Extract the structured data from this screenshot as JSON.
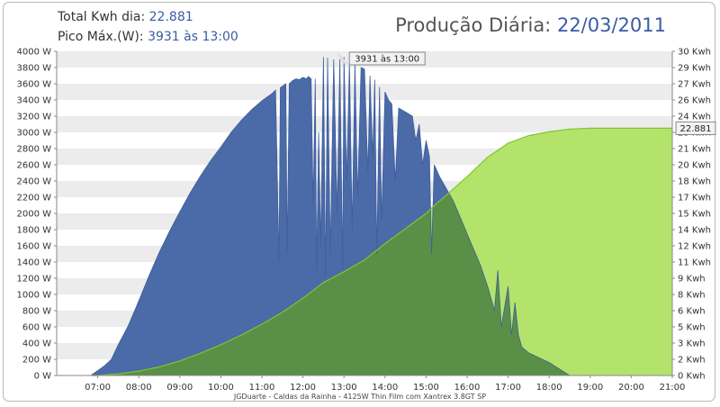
{
  "header": {
    "total_label": "Total Kwh dia:",
    "total_value": "22.881",
    "peak_label": "Pico Máx.(W):",
    "peak_value": "3931 às 13:00",
    "title_label": "Produção Diária:",
    "title_date": "22/03/2011"
  },
  "footer": "JGDuarte  -  Caldas da Rainha  -  4125W Thin Film com Xantrex 3.8GT SP",
  "colors": {
    "power_fill": "#4a6aa8",
    "power_stroke": "#3f5e9e",
    "energy_fill": "#b4e36c",
    "energy_stroke": "#7fc72e",
    "overlap_fill": "#5a8f47",
    "stripe": "#ececec"
  },
  "chart_data": {
    "type": "area",
    "title": "Produção Diária: 22/03/2011",
    "xlabel": "",
    "ylabel_left": "",
    "ylabel_right": "",
    "x_ticks": [
      "07:00",
      "08:00",
      "09:00",
      "10:00",
      "11:00",
      "12:00",
      "13:00",
      "14:00",
      "15:00",
      "16:00",
      "17:00",
      "18:00",
      "19:00",
      "20:00",
      "21:00"
    ],
    "xlim": [
      "06:00",
      "21:00"
    ],
    "y_left_ticks": [
      "0 W",
      "200 W",
      "400 W",
      "600 W",
      "800 W",
      "1000 W",
      "1200 W",
      "1400 W",
      "1600 W",
      "1800 W",
      "2000 W",
      "2200 W",
      "2400 W",
      "2600 W",
      "2800 W",
      "3000 W",
      "3200 W",
      "3400 W",
      "3600 W",
      "3800 W",
      "4000 W"
    ],
    "ylim_left": [
      0,
      4000
    ],
    "y_right_ticks": [
      "0 Kwh",
      "2 Kwh",
      "3 Kwh",
      "5 Kwh",
      "6 Kwh",
      "8 Kwh",
      "9 Kwh",
      "11 Kwh",
      "12 Kwh",
      "14 Kwh",
      "15 Kwh",
      "17 Kwh",
      "18 Kwh",
      "20 Kwh",
      "21 Kwh",
      "23 Kwh",
      "24 Kwh",
      "26 Kwh",
      "27 Kwh",
      "29 Kwh",
      "30 Kwh"
    ],
    "ylim_right": [
      0,
      30
    ],
    "grid": "horizontal stripes",
    "annotations": [
      {
        "text": "3931 às 13:00",
        "time": "13:00",
        "value": 3931
      },
      {
        "text": "22.881",
        "value": 22.881
      }
    ],
    "series": [
      {
        "axis": "left",
        "unit": "W",
        "points": [
          [
            "06:50",
            0
          ],
          [
            "07:00",
            60
          ],
          [
            "07:10",
            120
          ],
          [
            "07:20",
            200
          ],
          [
            "07:30",
            380
          ],
          [
            "07:45",
            620
          ],
          [
            "08:00",
            920
          ],
          [
            "08:15",
            1230
          ],
          [
            "08:30",
            1520
          ],
          [
            "08:45",
            1780
          ],
          [
            "09:00",
            2020
          ],
          [
            "09:15",
            2250
          ],
          [
            "09:30",
            2460
          ],
          [
            "09:45",
            2650
          ],
          [
            "10:00",
            2820
          ],
          [
            "10:15",
            3000
          ],
          [
            "10:30",
            3150
          ],
          [
            "10:45",
            3280
          ],
          [
            "11:00",
            3390
          ],
          [
            "11:15",
            3480
          ],
          [
            "11:20",
            3520
          ],
          [
            "11:25",
            1400
          ],
          [
            "11:27",
            3550
          ],
          [
            "11:35",
            3600
          ],
          [
            "11:37",
            1500
          ],
          [
            "11:40",
            3600
          ],
          [
            "11:45",
            3640
          ],
          [
            "11:50",
            3660
          ],
          [
            "11:55",
            3650
          ],
          [
            "12:00",
            3680
          ],
          [
            "12:05",
            3660
          ],
          [
            "12:08",
            3690
          ],
          [
            "12:12",
            3660
          ],
          [
            "12:15",
            2100
          ],
          [
            "12:18",
            3660
          ],
          [
            "12:20",
            1300
          ],
          [
            "12:23",
            3000
          ],
          [
            "12:26",
            1600
          ],
          [
            "12:30",
            3931
          ],
          [
            "12:33",
            1200
          ],
          [
            "12:36",
            3920
          ],
          [
            "12:40",
            1500
          ],
          [
            "12:45",
            3900
          ],
          [
            "12:50",
            2000
          ],
          [
            "12:54",
            3900
          ],
          [
            "12:58",
            1300
          ],
          [
            "13:00",
            3931
          ],
          [
            "13:04",
            2400
          ],
          [
            "13:08",
            3860
          ],
          [
            "13:12",
            1800
          ],
          [
            "13:16",
            3850
          ],
          [
            "13:20",
            2200
          ],
          [
            "13:25",
            3800
          ],
          [
            "13:30",
            3780
          ],
          [
            "13:35",
            2500
          ],
          [
            "13:38",
            3700
          ],
          [
            "13:42",
            2700
          ],
          [
            "13:45",
            3650
          ],
          [
            "13:48",
            1500
          ],
          [
            "13:52",
            3560
          ],
          [
            "13:55",
            1900
          ],
          [
            "14:00",
            3500
          ],
          [
            "14:05",
            3400
          ],
          [
            "14:10",
            3350
          ],
          [
            "14:15",
            2400
          ],
          [
            "14:20",
            3300
          ],
          [
            "14:30",
            3250
          ],
          [
            "14:40",
            3200
          ],
          [
            "14:45",
            2900
          ],
          [
            "14:50",
            3100
          ],
          [
            "14:55",
            2600
          ],
          [
            "15:00",
            2900
          ],
          [
            "15:05",
            2700
          ],
          [
            "15:08",
            1500
          ],
          [
            "15:12",
            2600
          ],
          [
            "15:20",
            2450
          ],
          [
            "15:30",
            2300
          ],
          [
            "15:40",
            2150
          ],
          [
            "15:50",
            1950
          ],
          [
            "16:00",
            1750
          ],
          [
            "16:10",
            1550
          ],
          [
            "16:20",
            1350
          ],
          [
            "16:30",
            1100
          ],
          [
            "16:40",
            800
          ],
          [
            "16:45",
            1300
          ],
          [
            "16:50",
            600
          ],
          [
            "17:00",
            1100
          ],
          [
            "17:05",
            500
          ],
          [
            "17:10",
            900
          ],
          [
            "17:15",
            500
          ],
          [
            "17:20",
            350
          ],
          [
            "17:30",
            280
          ],
          [
            "17:45",
            220
          ],
          [
            "18:00",
            160
          ],
          [
            "18:15",
            80
          ],
          [
            "18:30",
            0
          ]
        ]
      },
      {
        "axis": "right",
        "unit": "Kwh",
        "points": [
          [
            "06:50",
            0
          ],
          [
            "07:00",
            0
          ],
          [
            "07:30",
            0.15
          ],
          [
            "08:00",
            0.4
          ],
          [
            "08:30",
            0.8
          ],
          [
            "09:00",
            1.35
          ],
          [
            "09:30",
            2.05
          ],
          [
            "10:00",
            2.85
          ],
          [
            "10:30",
            3.75
          ],
          [
            "11:00",
            4.75
          ],
          [
            "11:30",
            5.85
          ],
          [
            "12:00",
            7.15
          ],
          [
            "12:30",
            8.6
          ],
          [
            "13:00",
            9.6
          ],
          [
            "13:30",
            10.7
          ],
          [
            "14:00",
            12.2
          ],
          [
            "14:30",
            13.6
          ],
          [
            "15:00",
            15.0
          ],
          [
            "15:15",
            15.9
          ],
          [
            "15:30",
            16.7
          ],
          [
            "16:00",
            18.4
          ],
          [
            "16:30",
            20.2
          ],
          [
            "17:00",
            21.5
          ],
          [
            "17:30",
            22.2
          ],
          [
            "18:00",
            22.55
          ],
          [
            "18:30",
            22.8
          ],
          [
            "19:00",
            22.881
          ],
          [
            "21:00",
            22.881
          ]
        ]
      }
    ]
  }
}
